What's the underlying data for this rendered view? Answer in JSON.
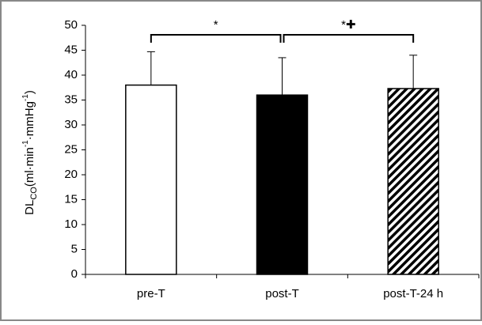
{
  "chart_data": {
    "type": "bar",
    "categories": [
      "pre-T",
      "post-T",
      "post-T-24 h"
    ],
    "values": [
      38,
      36,
      37.3
    ],
    "errors": [
      6.7,
      7.5,
      6.7
    ],
    "bar_fills": [
      "white",
      "black",
      "hatch"
    ],
    "ylim": [
      0,
      50
    ],
    "yticks": [
      0,
      5,
      10,
      15,
      20,
      25,
      30,
      35,
      40,
      45,
      50
    ],
    "ylabel_parts": [
      {
        "text": "DL"
      },
      {
        "text": "CO",
        "style": "sub"
      },
      {
        "text": "(ml·min"
      },
      {
        "text": "-1",
        "style": "sup"
      },
      {
        "text": "·mmHg"
      },
      {
        "text": "-1",
        "style": "sup"
      },
      {
        "text": ")"
      }
    ],
    "annotations": [
      "*",
      "*✚"
    ]
  }
}
